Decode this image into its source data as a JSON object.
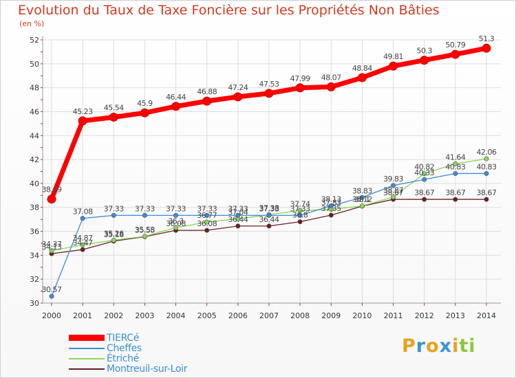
{
  "chart_data": {
    "type": "line",
    "title": "Evolution du Taux de Taxe Foncière sur les Propriétés Non Bâties",
    "ylabel": "(en %)",
    "xlabel": "",
    "ylim": [
      30,
      52
    ],
    "yticks": [
      "30",
      "32",
      "34",
      "36",
      "38",
      "40",
      "42",
      "44",
      "46",
      "48",
      "50",
      "52"
    ],
    "categories": [
      "2000",
      "2001",
      "2002",
      "2003",
      "2004",
      "2005",
      "2006",
      "2007",
      "2008",
      "2009",
      "2010",
      "2011",
      "2012",
      "2013",
      "2014"
    ],
    "grid": true,
    "legend_position": "bottom-left",
    "series": [
      {
        "name": "TIERCé",
        "color": "#ff0000",
        "values": [
          38.69,
          45.23,
          45.54,
          45.9,
          46.44,
          46.88,
          47.24,
          47.53,
          47.99,
          48.07,
          48.84,
          49.81,
          50.3,
          50.79,
          51.3
        ],
        "labels": [
          "38.69",
          "45.23",
          "45.54",
          "45.9",
          "46.44",
          "46.88",
          "47.24",
          "47.53",
          "47.99",
          "48.07",
          "48.84",
          "49.81",
          "50.3",
          "50.79",
          "51.3"
        ]
      },
      {
        "name": "Cheffes",
        "color": "#3b8bd8",
        "values": [
          30.57,
          37.08,
          37.33,
          37.33,
          37.33,
          37.33,
          37.33,
          37.33,
          37.33,
          38.13,
          38.83,
          39.83,
          40.33,
          40.83,
          40.83
        ],
        "labels": [
          "30.57",
          "37.08",
          "37.33",
          "37.33",
          "37.33",
          "37.33",
          "37.33",
          "37.33",
          "37.33",
          "38.13",
          "38.83",
          "39.83",
          "40.33",
          "40.83",
          "40.83"
        ]
      },
      {
        "name": "Étriché",
        "color": "#8bd65a",
        "values": [
          34.37,
          34.87,
          35.26,
          35.58,
          36.3,
          36.77,
          37.04,
          37.38,
          37.74,
          37.83,
          38.12,
          38.87,
          40.82,
          41.64,
          42.06
        ],
        "labels": [
          "34.37",
          "34.87",
          "35.26",
          "35.58",
          "36.3",
          "36.77",
          "37.04",
          "37.38",
          "37.74",
          "37.83",
          "38.12",
          "38.87",
          "40.82",
          "41.64",
          "42.06"
        ]
      },
      {
        "name": "Montreuil-sur-Loir",
        "color": "#6b1f1f",
        "values": [
          34.13,
          34.47,
          35.18,
          35.55,
          36.08,
          36.08,
          36.44,
          36.44,
          36.8,
          37.35,
          38.1,
          38.67,
          38.67,
          38.67,
          38.67
        ],
        "labels": [
          "34.13",
          "34.47",
          "35.18",
          "35.55",
          "36.08",
          "36.08",
          "36.44",
          "36.44",
          "36.8",
          "37.35",
          "38.1",
          "38.67",
          "38.67",
          "38.67",
          "38.67"
        ]
      }
    ]
  },
  "brand": {
    "letters": [
      "P",
      "r",
      "o",
      "x",
      "i",
      "t",
      "i"
    ],
    "colors": [
      "#e9a21c",
      "#3a94d8",
      "#e9a21c",
      "#3a94d8",
      "#e9a21c",
      "#8cc63f",
      "#8cc63f"
    ]
  }
}
